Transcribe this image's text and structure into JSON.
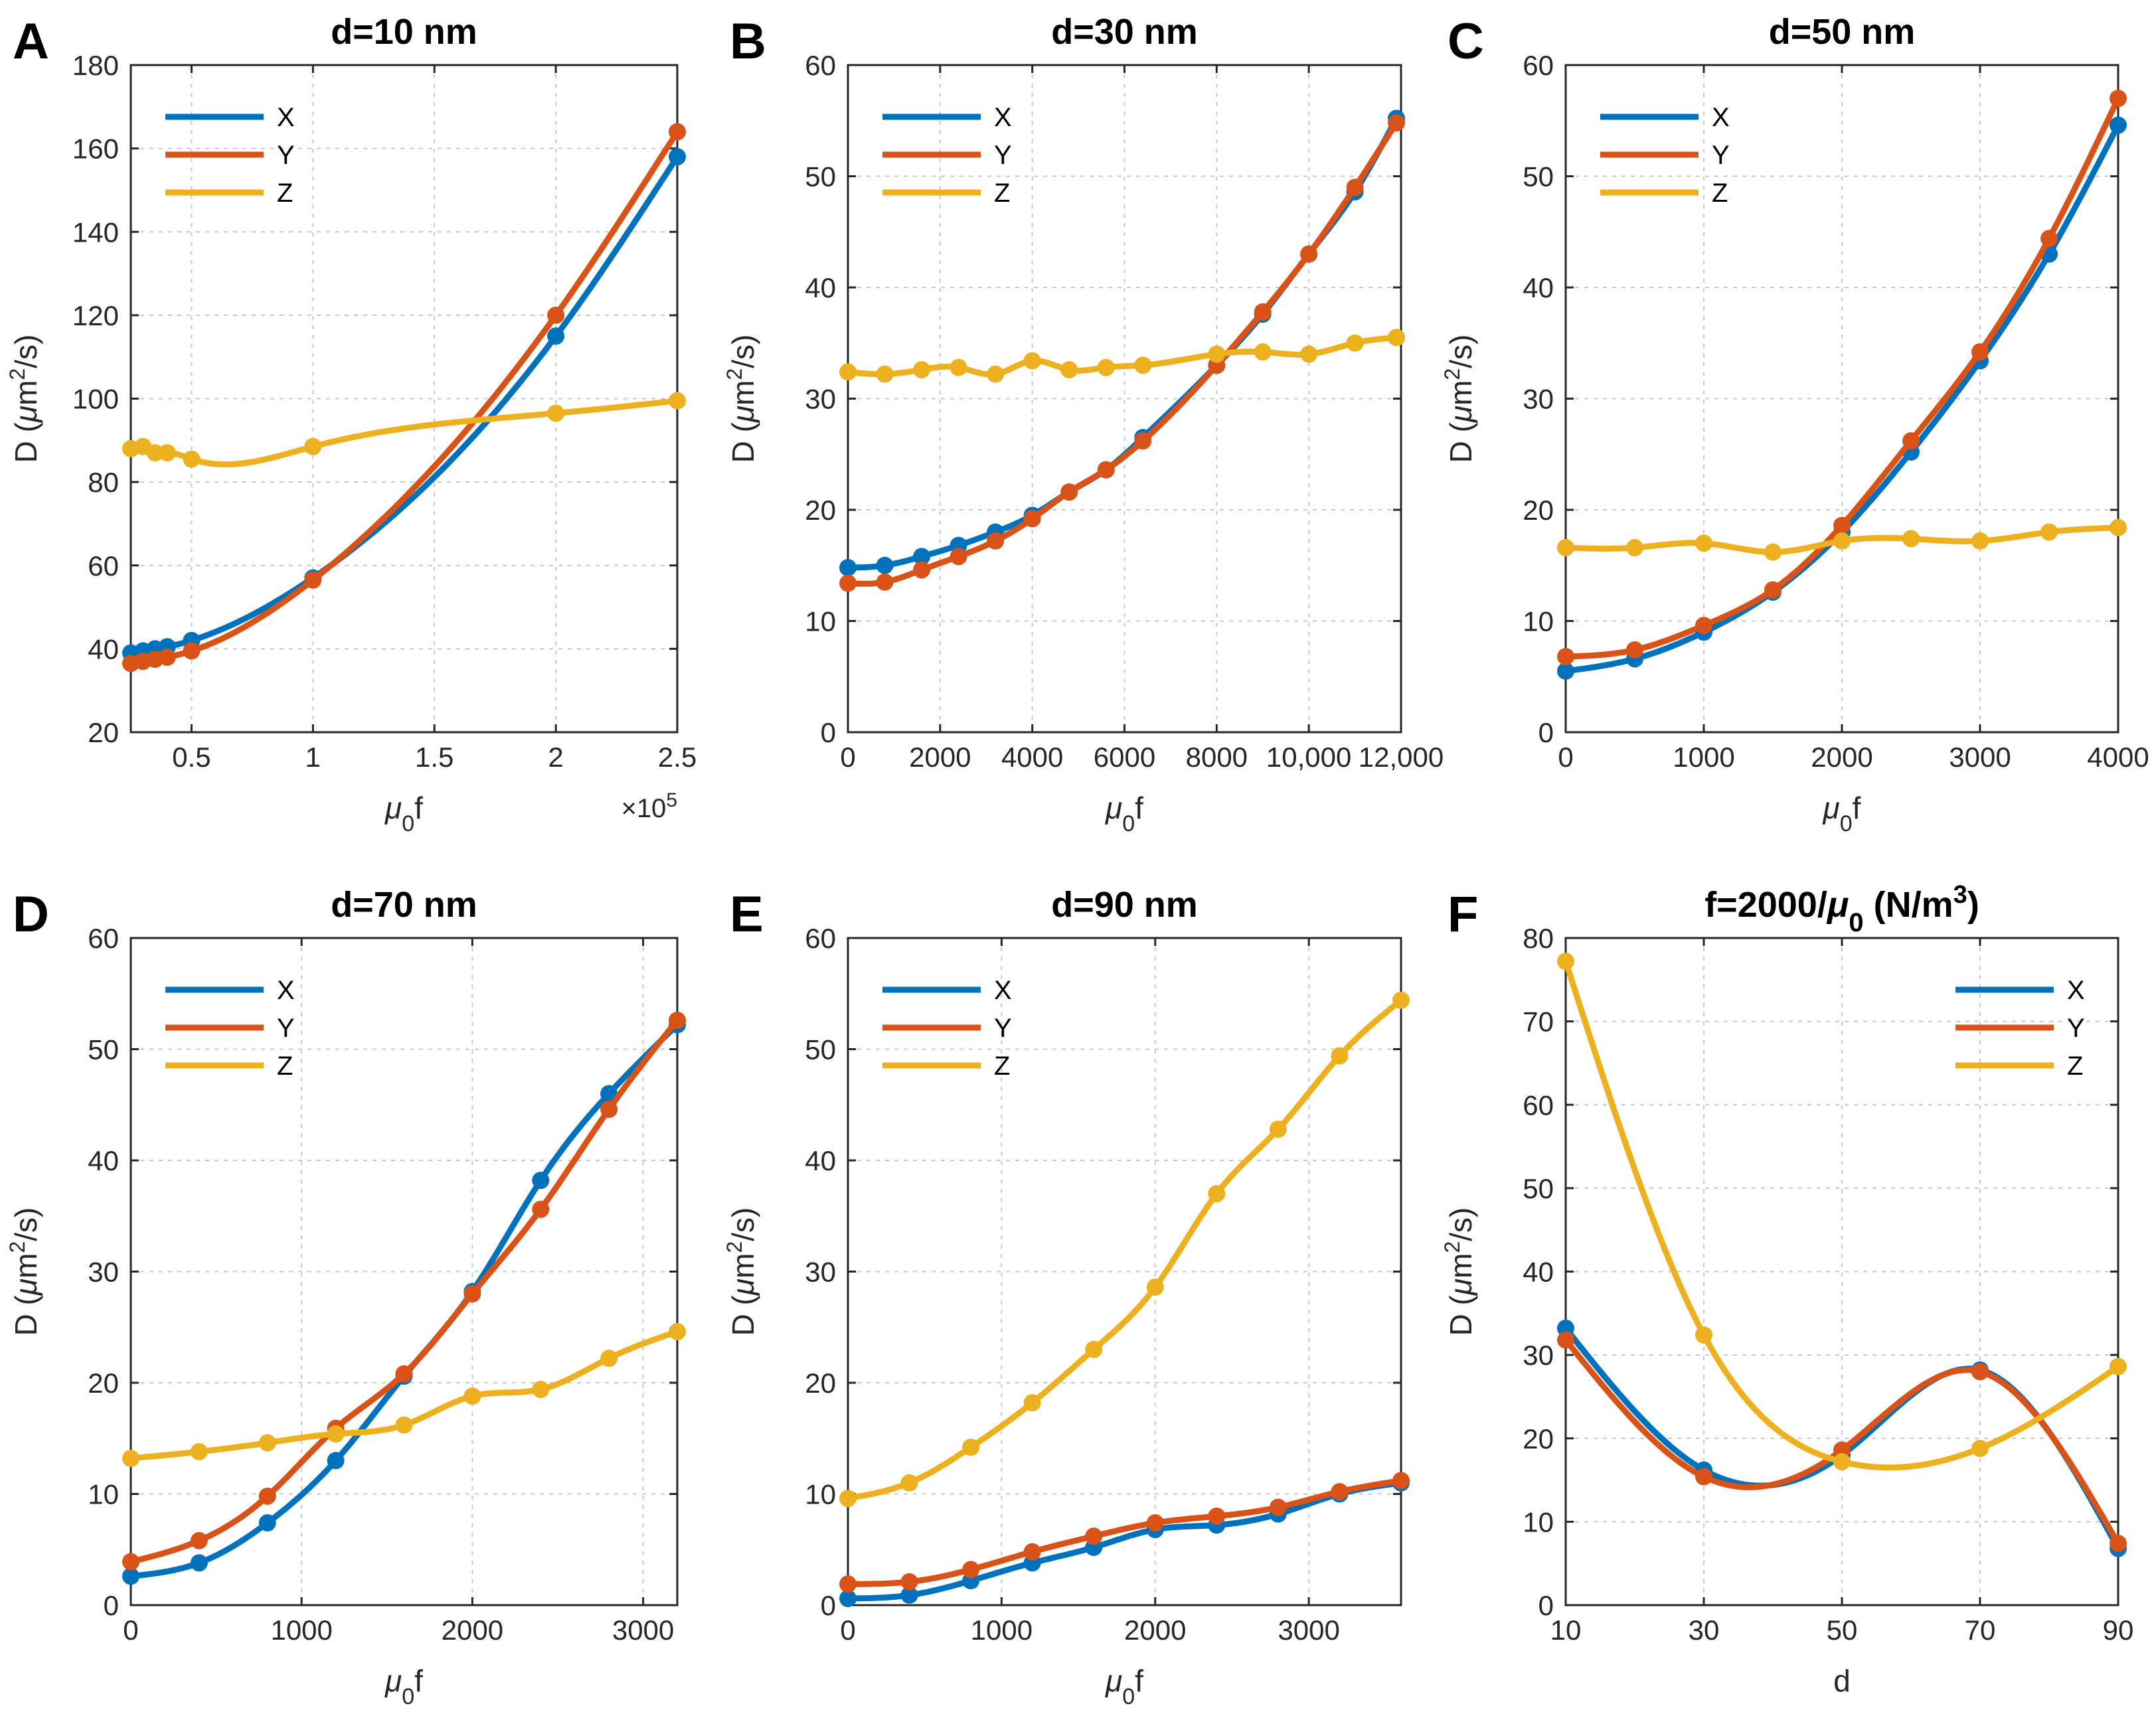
{
  "colors": {
    "X": "#0072BD",
    "Y": "#D95319",
    "Z": "#EDB120",
    "axis": "#262626",
    "grid": "#c8c8c8"
  },
  "chart_data": [
    {
      "panel": "A",
      "type": "line",
      "title": "d=10 nm",
      "xlabel": "μ0f",
      "ylabel": "D (μm2/s)",
      "xlim": [
        25000,
        250000
      ],
      "ylim": [
        20,
        180
      ],
      "xticks": [
        50000,
        100000,
        150000,
        200000,
        250000
      ],
      "xtick_labels": [
        "0.5",
        "1",
        "1.5",
        "2",
        "2.5"
      ],
      "yticks": [
        20,
        40,
        60,
        80,
        100,
        120,
        140,
        160,
        180
      ],
      "ytick_labels": [
        "20",
        "40",
        "60",
        "80",
        "100",
        "120",
        "140",
        "160",
        "180"
      ],
      "x_multiplier": "×10^5",
      "legend": "top-left",
      "x": [
        25000,
        30000,
        35000,
        40000,
        50000,
        100000,
        200000,
        250000
      ],
      "series": [
        {
          "name": "X",
          "values": [
            39,
            39.5,
            40,
            40.5,
            42,
            57,
            115,
            158
          ]
        },
        {
          "name": "Y",
          "values": [
            36.5,
            37,
            37.5,
            38,
            39.5,
            56.5,
            120,
            164
          ]
        },
        {
          "name": "Z",
          "values": [
            88,
            88.5,
            87,
            87,
            85.5,
            88.5,
            96.5,
            99.5
          ]
        }
      ]
    },
    {
      "panel": "B",
      "type": "line",
      "title": "d=30 nm",
      "xlabel": "μ0f",
      "ylabel": "D (μm2/s)",
      "xlim": [
        0,
        12000
      ],
      "ylim": [
        0,
        60
      ],
      "xticks": [
        0,
        2000,
        4000,
        6000,
        8000,
        10000,
        12000
      ],
      "xtick_labels": [
        "0",
        "2000",
        "4000",
        "6000",
        "8000",
        "10,000",
        "12,000"
      ],
      "yticks": [
        0,
        10,
        20,
        30,
        40,
        50,
        60
      ],
      "ytick_labels": [
        "0",
        "10",
        "20",
        "30",
        "40",
        "50",
        "60"
      ],
      "legend": "top-left",
      "x": [
        0,
        800,
        1600,
        2400,
        3200,
        4000,
        4800,
        5600,
        6400,
        8000,
        9000,
        10000,
        11000,
        11900
      ],
      "series": [
        {
          "name": "X",
          "values": [
            14.8,
            15.0,
            15.8,
            16.8,
            18.0,
            19.5,
            21.6,
            23.6,
            26.5,
            33.0,
            37.6,
            43.0,
            48.6,
            55.2
          ]
        },
        {
          "name": "Y",
          "values": [
            13.4,
            13.5,
            14.6,
            15.8,
            17.2,
            19.2,
            21.6,
            23.6,
            26.2,
            33.0,
            37.8,
            43.0,
            49.0,
            54.8
          ]
        },
        {
          "name": "Z",
          "values": [
            32.4,
            32.2,
            32.6,
            32.8,
            32.2,
            33.4,
            32.6,
            32.8,
            33.0,
            34.0,
            34.2,
            34.0,
            35.0,
            35.5
          ]
        }
      ]
    },
    {
      "panel": "C",
      "type": "line",
      "title": "d=50 nm",
      "xlabel": "μ0f",
      "ylabel": "D (μm2/s)",
      "xlim": [
        0,
        4000
      ],
      "ylim": [
        0,
        60
      ],
      "xticks": [
        0,
        1000,
        2000,
        3000,
        4000
      ],
      "xtick_labels": [
        "0",
        "1000",
        "2000",
        "3000",
        "4000"
      ],
      "yticks": [
        0,
        10,
        20,
        30,
        40,
        50,
        60
      ],
      "ytick_labels": [
        "0",
        "10",
        "20",
        "30",
        "40",
        "50",
        "60"
      ],
      "legend": "top-left",
      "x": [
        0,
        500,
        1000,
        1500,
        2000,
        2500,
        3000,
        3500,
        4000
      ],
      "series": [
        {
          "name": "X",
          "values": [
            5.5,
            6.6,
            9.0,
            12.6,
            18.0,
            25.2,
            33.4,
            43.0,
            54.6
          ]
        },
        {
          "name": "Y",
          "values": [
            6.8,
            7.4,
            9.6,
            12.8,
            18.6,
            26.2,
            34.2,
            44.4,
            57.0
          ]
        },
        {
          "name": "Z",
          "values": [
            16.6,
            16.6,
            17.0,
            16.2,
            17.2,
            17.4,
            17.2,
            18.0,
            18.4
          ]
        }
      ]
    },
    {
      "panel": "D",
      "type": "line",
      "title": "d=70 nm",
      "xlabel": "μ0f",
      "ylabel": "D (μm2/s)",
      "xlim": [
        0,
        3200
      ],
      "ylim": [
        0,
        60
      ],
      "xticks": [
        0,
        1000,
        2000,
        3000
      ],
      "xtick_labels": [
        "0",
        "1000",
        "2000",
        "3000"
      ],
      "yticks": [
        0,
        10,
        20,
        30,
        40,
        50,
        60
      ],
      "ytick_labels": [
        "0",
        "10",
        "20",
        "30",
        "40",
        "50",
        "60"
      ],
      "legend": "top-left",
      "x": [
        0,
        400,
        800,
        1200,
        1600,
        2000,
        2400,
        2800,
        3200
      ],
      "series": [
        {
          "name": "X",
          "values": [
            2.6,
            3.8,
            7.4,
            13.0,
            20.6,
            28.2,
            38.2,
            46.0,
            52.2
          ]
        },
        {
          "name": "Y",
          "values": [
            3.9,
            5.8,
            9.8,
            15.9,
            20.8,
            28.0,
            35.6,
            44.6,
            52.6
          ]
        },
        {
          "name": "Z",
          "values": [
            13.2,
            13.8,
            14.6,
            15.4,
            16.2,
            18.8,
            19.4,
            22.2,
            24.6
          ]
        }
      ]
    },
    {
      "panel": "E",
      "type": "line",
      "title": "d=90 nm",
      "xlabel": "μ0f",
      "ylabel": "D (μm2/s)",
      "xlim": [
        0,
        3600
      ],
      "ylim": [
        0,
        60
      ],
      "xticks": [
        0,
        1000,
        2000,
        3000
      ],
      "xtick_labels": [
        "0",
        "1000",
        "2000",
        "3000"
      ],
      "yticks": [
        0,
        10,
        20,
        30,
        40,
        50,
        60
      ],
      "ytick_labels": [
        "0",
        "10",
        "20",
        "30",
        "40",
        "50",
        "60"
      ],
      "legend": "top-left",
      "x": [
        0,
        400,
        800,
        1200,
        1600,
        2000,
        2400,
        2800,
        3200,
        3600
      ],
      "series": [
        {
          "name": "X",
          "values": [
            0.6,
            0.9,
            2.2,
            3.8,
            5.2,
            6.8,
            7.2,
            8.2,
            10.0,
            11.0
          ]
        },
        {
          "name": "Y",
          "values": [
            1.9,
            2.1,
            3.2,
            4.8,
            6.2,
            7.4,
            8.0,
            8.8,
            10.2,
            11.2
          ]
        },
        {
          "name": "Z",
          "values": [
            9.6,
            11.0,
            14.2,
            18.2,
            23.0,
            28.6,
            37.0,
            42.8,
            49.4,
            54.4
          ]
        }
      ]
    },
    {
      "panel": "F",
      "type": "line",
      "title": "f=2000/μ0 (N/m3)",
      "xlabel": "d",
      "ylabel": "D (μm2/s)",
      "xlim": [
        10,
        90
      ],
      "ylim": [
        0,
        80
      ],
      "xticks": [
        10,
        30,
        50,
        70,
        90
      ],
      "xtick_labels": [
        "10",
        "30",
        "50",
        "70",
        "90"
      ],
      "yticks": [
        0,
        10,
        20,
        30,
        40,
        50,
        60,
        70,
        80
      ],
      "ytick_labels": [
        "0",
        "10",
        "20",
        "30",
        "40",
        "50",
        "60",
        "70",
        "80"
      ],
      "legend": "top-right",
      "x": [
        10,
        30,
        50,
        70,
        90
      ],
      "series": [
        {
          "name": "X",
          "values": [
            33.2,
            16.2,
            18.0,
            28.2,
            6.8
          ]
        },
        {
          "name": "Y",
          "values": [
            31.8,
            15.4,
            18.6,
            28.0,
            7.4
          ]
        },
        {
          "name": "Z",
          "values": [
            77.2,
            32.4,
            17.2,
            18.8,
            28.6
          ]
        }
      ]
    }
  ]
}
